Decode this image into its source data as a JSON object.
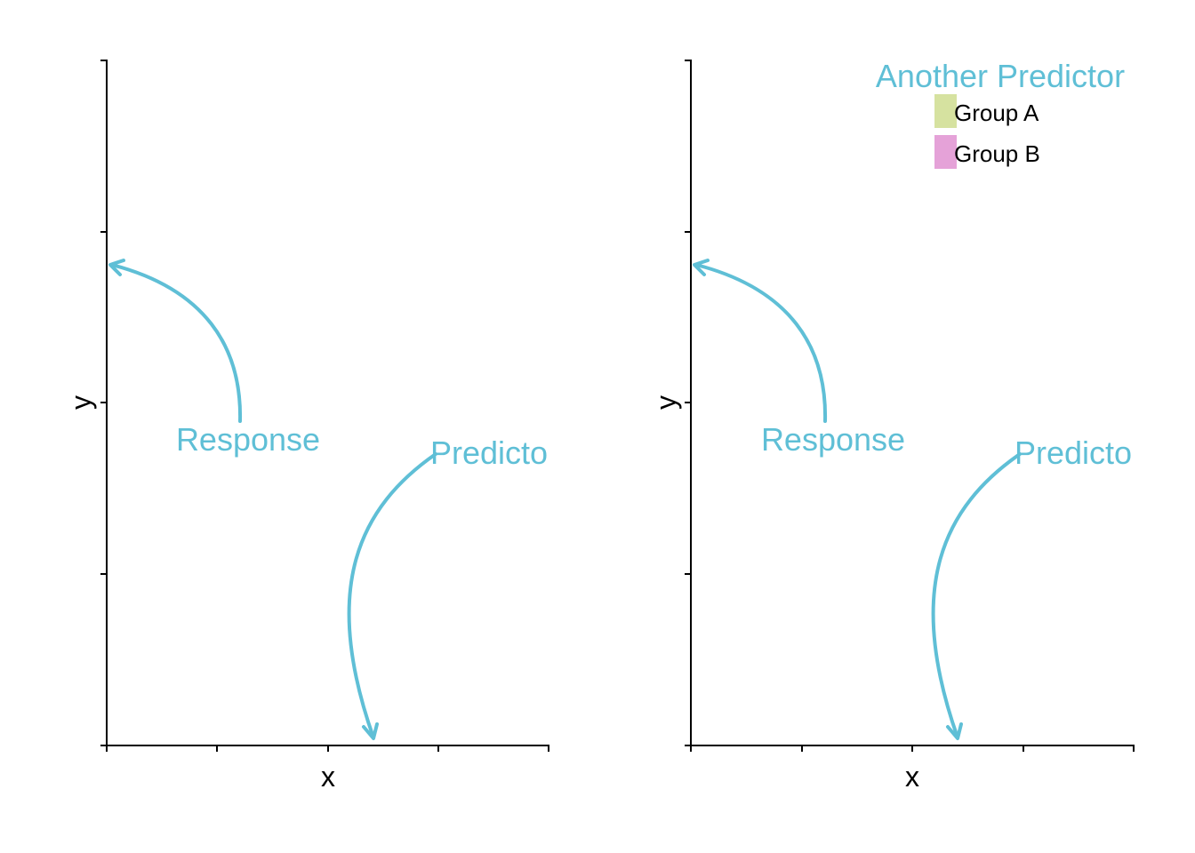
{
  "colors": {
    "annotation": "#5fbfd6",
    "group_a": "#d6e2a0",
    "group_b": "#e5a2d8",
    "axis": "#000000"
  },
  "panels": [
    {
      "xlabel": "x",
      "ylabel": "y",
      "response_label": "Response",
      "predictor_label": "Predicto"
    },
    {
      "xlabel": "x",
      "ylabel": "y",
      "response_label": "Response",
      "predictor_label": "Predicto",
      "legend": {
        "title": "Another Predictor",
        "items": [
          {
            "label": "Group A",
            "color": "#d6e2a0"
          },
          {
            "label": "Group B",
            "color": "#e5a2d8"
          }
        ]
      }
    }
  ]
}
